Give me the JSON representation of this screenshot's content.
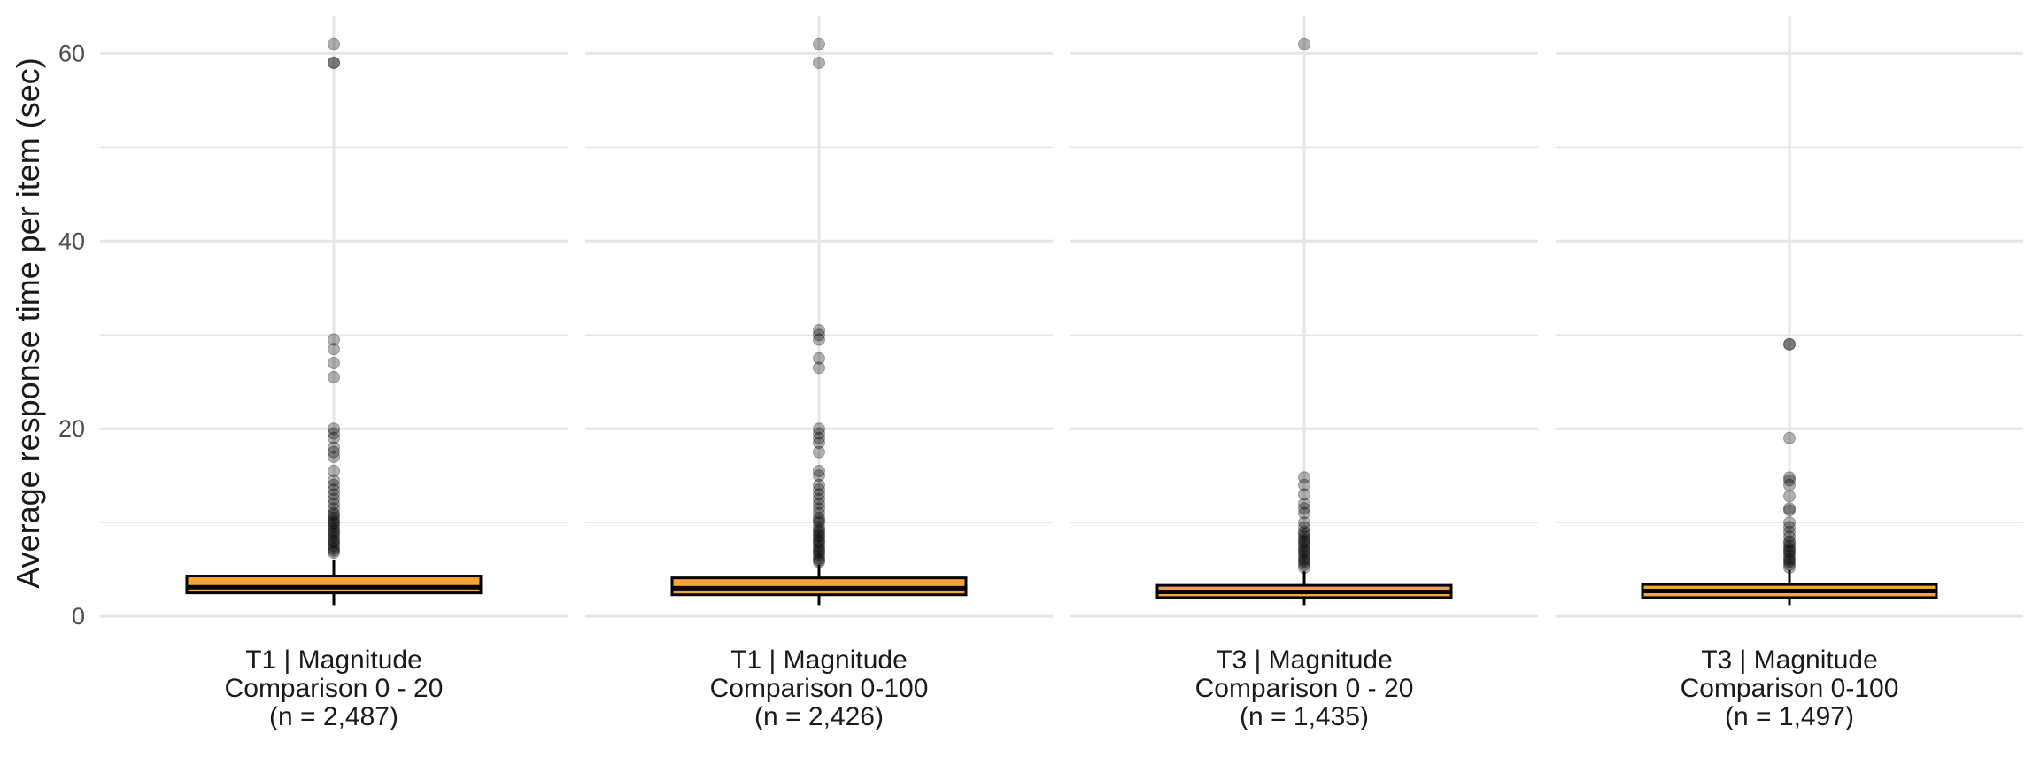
{
  "chart_data": {
    "type": "boxplot",
    "title": "",
    "xlabel": "",
    "ylabel": "Average response time per item (sec)",
    "ylim": [
      -1.5,
      64
    ],
    "yticks": [
      0,
      20,
      40,
      60
    ],
    "y_minor_gridlines": [
      10,
      30,
      50
    ],
    "box_fill": "#f4a53a",
    "box_edge": "#000000",
    "outlier_color": "#000000",
    "grid_color": "#e5e5e5",
    "panels": [
      {
        "label_lines": [
          "T1 | Magnitude",
          "Comparison 0 - 20",
          "(n = 2,487)"
        ],
        "whisker_low": 1.2,
        "q1": 2.5,
        "median": 3.1,
        "q3": 4.3,
        "whisker_high": 6.0,
        "outliers": [
          61,
          59,
          59,
          29.5,
          28.5,
          27,
          25.5,
          20,
          19.5,
          19,
          18,
          17.5,
          17,
          15.5,
          14.5,
          14,
          13.5,
          13,
          12.5,
          12,
          11.5,
          11,
          10.8,
          10.5,
          10.2,
          10,
          9.8,
          9.5,
          9.2,
          9,
          8.8,
          8.5,
          8.2,
          8,
          7.8,
          7.5,
          7.2,
          7,
          6.8
        ]
      },
      {
        "label_lines": [
          "T1 | Magnitude",
          "Comparison 0-100",
          "(n = 2,426)"
        ],
        "whisker_low": 1.2,
        "q1": 2.3,
        "median": 3.0,
        "q3": 4.1,
        "whisker_high": 5.5,
        "outliers": [
          61,
          59,
          30.5,
          30,
          29.5,
          27.5,
          26.5,
          20,
          19.5,
          19,
          18.5,
          17.5,
          15.5,
          15,
          14,
          13.5,
          13,
          12.5,
          12,
          11.5,
          11,
          10.5,
          10.2,
          10,
          9.5,
          9.2,
          9,
          8.7,
          8.5,
          8.2,
          8,
          7.8,
          7.5,
          7.2,
          7,
          6.8,
          6.5,
          6.2,
          6,
          5.8
        ]
      },
      {
        "label_lines": [
          "T3 | Magnitude",
          "Comparison 0 - 20",
          "(n = 1,435)"
        ],
        "whisker_low": 1.2,
        "q1": 2.0,
        "median": 2.6,
        "q3": 3.3,
        "whisker_high": 4.8,
        "outliers": [
          61,
          14.8,
          14,
          13,
          12,
          11.5,
          11,
          10,
          9.5,
          9,
          8.8,
          8.5,
          8.2,
          8,
          7.8,
          7.5,
          7.2,
          7,
          6.8,
          6.5,
          6.2,
          6,
          5.8,
          5.5,
          5.2
        ]
      },
      {
        "label_lines": [
          "T3 | Magnitude",
          "Comparison 0-100",
          "(n = 1,497)"
        ],
        "whisker_low": 1.2,
        "q1": 2.0,
        "median": 2.7,
        "q3": 3.4,
        "whisker_high": 4.9,
        "outliers": [
          29,
          29,
          19,
          14.8,
          14.5,
          14,
          12.8,
          11.5,
          11.3,
          10,
          9.5,
          9,
          8.5,
          8,
          7.8,
          7.5,
          7.2,
          7,
          6.8,
          6.5,
          6.2,
          6,
          5.8,
          5.5,
          5.2
        ]
      }
    ]
  }
}
